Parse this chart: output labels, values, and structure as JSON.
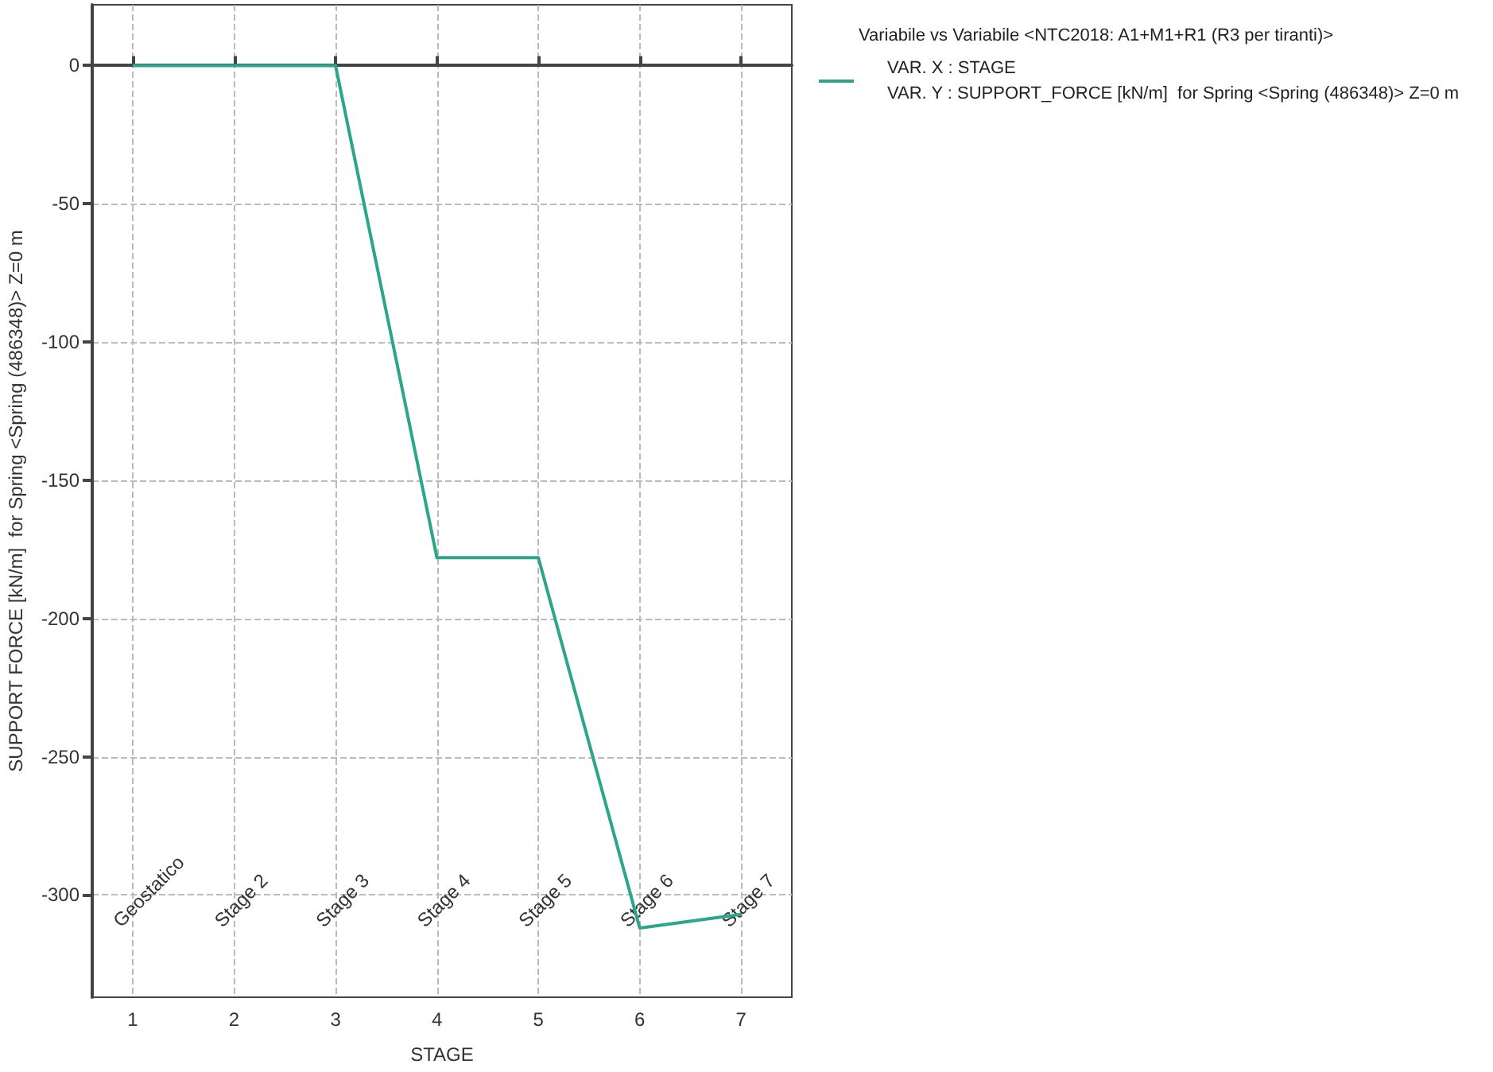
{
  "chart_data": {
    "type": "line",
    "xlabel": "STAGE",
    "ylabel": "SUPPORT FORCE [kN/m]  for Spring <Spring (486348)> Z=0 m",
    "legend_title": "Variabile vs Variabile <NTC2018: A1+M1+R1 (R3 per tiranti)>",
    "x": [
      1,
      2,
      3,
      4,
      5,
      6,
      7
    ],
    "series": [
      {
        "name": "VAR. X : STAGE\nVAR. Y : SUPPORT_FORCE [kN/m]  for Spring <Spring (486348)> Z=0 m",
        "color": "#2ca58a",
        "values": [
          0,
          0,
          0,
          -178,
          -178,
          -312,
          -307
        ]
      }
    ],
    "xlim": [
      0.6,
      7.5
    ],
    "xticks": [
      1,
      2,
      3,
      4,
      5,
      6,
      7
    ],
    "ylim": [
      -337,
      22
    ],
    "yticks": [
      0,
      -50,
      -100,
      -150,
      -200,
      -250,
      -300
    ],
    "annotations": [
      "Geostatico",
      "Stage 2",
      "Stage 3",
      "Stage 4",
      "Stage 5",
      "Stage 6",
      "Stage 7"
    ],
    "grid": true,
    "legend": "top right",
    "marker": "none",
    "line_style": "solid"
  }
}
